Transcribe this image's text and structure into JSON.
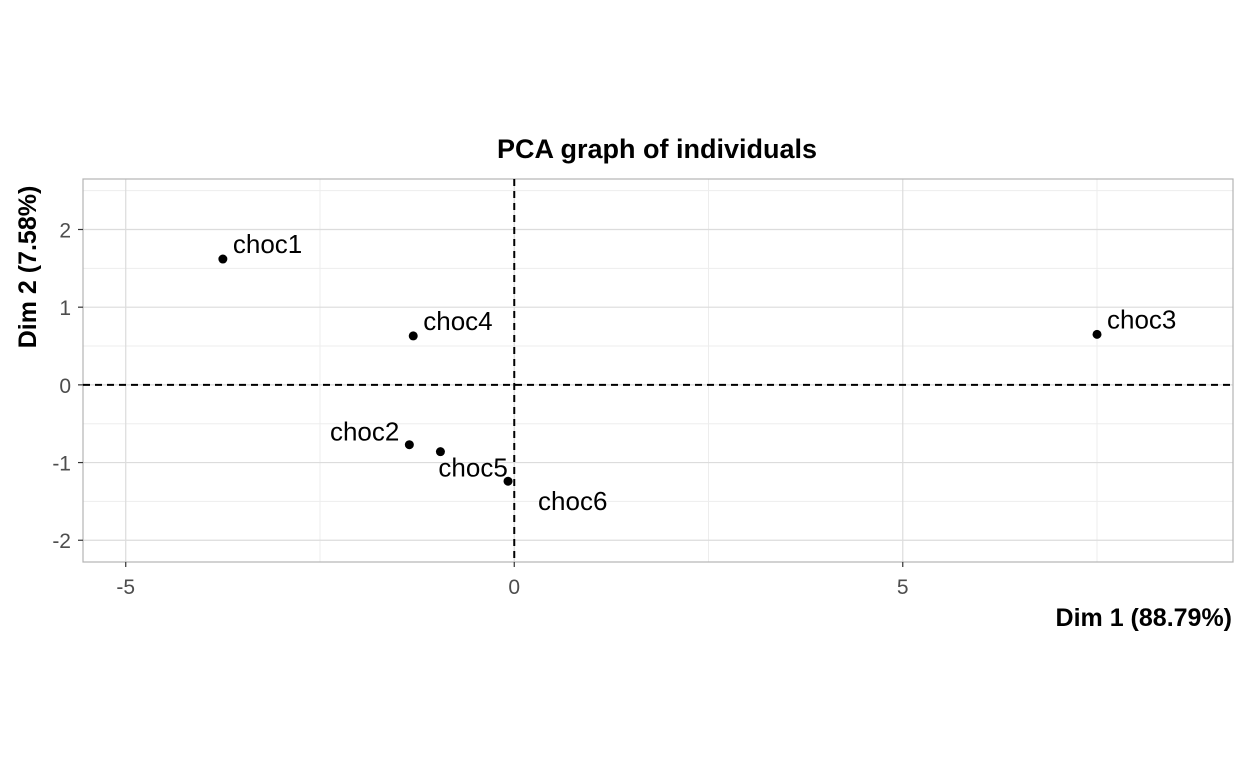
{
  "chart_data": {
    "type": "scatter",
    "title": "PCA graph of individuals",
    "xlabel": "Dim 1 (88.79%)",
    "ylabel": "Dim 2 (7.58%)",
    "xlim": [
      -5.55,
      9.25
    ],
    "ylim": [
      -2.28,
      2.65
    ],
    "xticks": [
      -5,
      0,
      5
    ],
    "yticks": [
      -2,
      -1,
      0,
      1,
      2
    ],
    "grid": true,
    "reference_lines": {
      "x": 0,
      "y": 0,
      "style": "dashed"
    },
    "points": [
      {
        "label": "choc1",
        "x": -3.75,
        "y": 1.62
      },
      {
        "label": "choc2",
        "x": -1.35,
        "y": -0.77
      },
      {
        "label": "choc3",
        "x": 7.5,
        "y": 0.65
      },
      {
        "label": "choc4",
        "x": -1.3,
        "y": 0.63
      },
      {
        "label": "choc5",
        "x": -0.95,
        "y": -0.86
      },
      {
        "label": "choc6",
        "x": -0.08,
        "y": -1.24
      }
    ]
  }
}
